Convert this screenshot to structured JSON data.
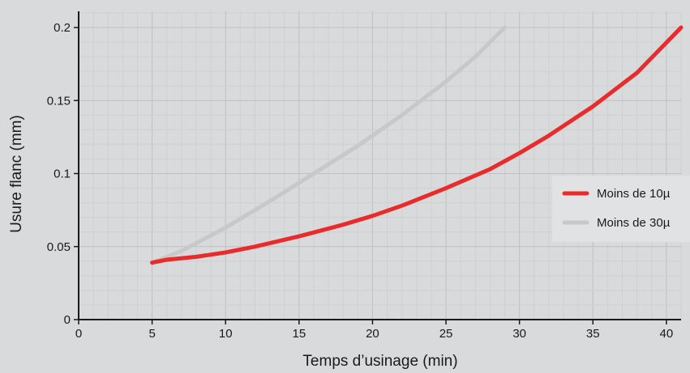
{
  "chart_data": {
    "type": "line",
    "title": "",
    "xlabel": "Temps d’usinage (min)",
    "ylabel": "Usure flanc (mm)",
    "xlim": [
      0,
      41
    ],
    "ylim": [
      0,
      0.21
    ],
    "xticks": [
      "0",
      "5",
      "10",
      "15",
      "20",
      "25",
      "30",
      "35",
      "40"
    ],
    "yticks": [
      "0",
      "0.05",
      "0.1",
      "0.15",
      "0.2"
    ],
    "grid": true,
    "legend_position": "right",
    "series": [
      {
        "name": "Moins de 10µ",
        "color": "#ea2b2b",
        "x": [
          5,
          6,
          8,
          10,
          12,
          15,
          18,
          20,
          22,
          25,
          28,
          30,
          32,
          35,
          38,
          41
        ],
        "y": [
          0.039,
          0.041,
          0.043,
          0.046,
          0.05,
          0.057,
          0.065,
          0.071,
          0.078,
          0.09,
          0.103,
          0.114,
          0.126,
          0.146,
          0.169,
          0.2
        ]
      },
      {
        "name": "Moins de 30µ",
        "color": "#c8c8c8",
        "x": [
          5,
          7,
          10,
          13,
          16,
          19,
          22,
          25,
          27,
          29
        ],
        "y": [
          0.039,
          0.047,
          0.063,
          0.081,
          0.1,
          0.119,
          0.14,
          0.163,
          0.18,
          0.2
        ]
      }
    ]
  }
}
